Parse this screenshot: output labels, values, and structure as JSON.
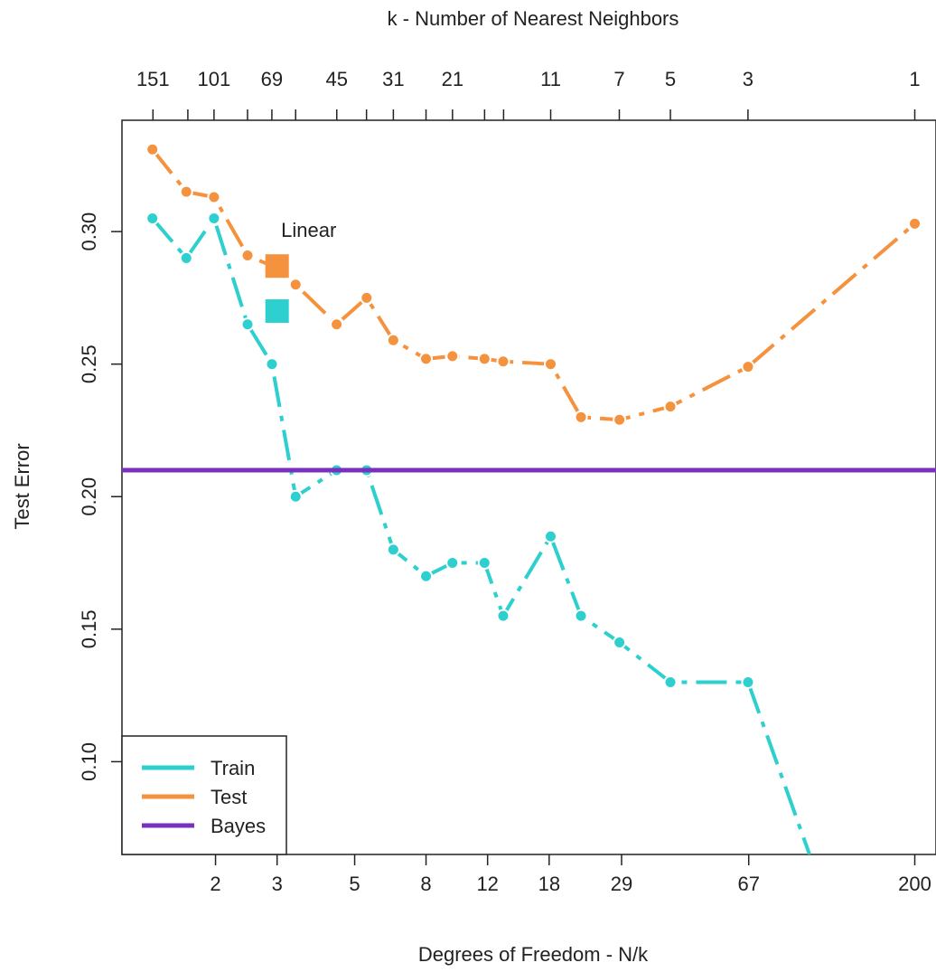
{
  "chart_data": {
    "type": "line",
    "top_axis_title": "k -  Number of Nearest Neighbors",
    "xlabel": "Degrees of Freedom - N/k",
    "ylabel": "Test Error",
    "x_scale": "log",
    "xlim": [
      1.08,
      230
    ],
    "ylim": [
      0.065,
      0.342
    ],
    "grid": false,
    "legend_position": "bottom-left",
    "bottom_ticks": [
      2,
      3,
      5,
      8,
      12,
      18,
      29,
      67,
      200
    ],
    "top_ticks": [
      {
        "k": 151,
        "label": "151"
      },
      {
        "k": 120,
        "label": ""
      },
      {
        "k": 101,
        "label": "101"
      },
      {
        "k": 81,
        "label": ""
      },
      {
        "k": 69,
        "label": "69"
      },
      {
        "k": 59,
        "label": ""
      },
      {
        "k": 45,
        "label": "45"
      },
      {
        "k": 37,
        "label": ""
      },
      {
        "k": 31,
        "label": "31"
      },
      {
        "k": 25,
        "label": ""
      },
      {
        "k": 21,
        "label": "21"
      },
      {
        "k": 17,
        "label": ""
      },
      {
        "k": 15,
        "label": ""
      },
      {
        "k": 11,
        "label": "11"
      },
      {
        "k": 7,
        "label": "7"
      },
      {
        "k": 5,
        "label": "5"
      },
      {
        "k": 3,
        "label": "3"
      },
      {
        "k": 1,
        "label": "1"
      }
    ],
    "y_ticks": [
      {
        "value": 0.1,
        "label": "0.10"
      },
      {
        "value": 0.15,
        "label": "0.15"
      },
      {
        "value": 0.2,
        "label": "0.20"
      },
      {
        "value": 0.25,
        "label": "0.25"
      },
      {
        "value": 0.3,
        "label": "0.30"
      }
    ],
    "k_values": [
      151,
      101,
      69,
      45,
      31,
      21,
      11,
      7,
      5,
      3,
      1
    ],
    "n": 200,
    "series": [
      {
        "name": "Train",
        "color": "#2ecfcf",
        "x": [
          1.32,
          1.65,
          1.98,
          2.47,
          2.9,
          3.39,
          4.44,
          5.41,
          6.45,
          8.0,
          9.52,
          11.76,
          13.3,
          18.18,
          22.2,
          28.6,
          40.0,
          66.7,
          100.0
        ],
        "y": [
          0.305,
          0.29,
          0.305,
          0.265,
          0.25,
          0.2,
          0.21,
          0.21,
          0.18,
          0.17,
          0.175,
          0.175,
          0.155,
          0.185,
          0.155,
          0.145,
          0.13,
          0.13,
          0.065
        ]
      },
      {
        "name": "Test",
        "color": "#f5923e",
        "x": [
          1.32,
          1.65,
          1.98,
          2.47,
          2.9,
          3.39,
          4.44,
          5.41,
          6.45,
          8.0,
          9.52,
          11.76,
          13.3,
          18.18,
          22.2,
          28.6,
          40.0,
          66.7,
          200.0
        ],
        "y": [
          0.331,
          0.315,
          0.313,
          0.291,
          0.287,
          0.28,
          0.265,
          0.275,
          0.259,
          0.252,
          0.253,
          0.252,
          0.251,
          0.25,
          0.23,
          0.229,
          0.234,
          0.249,
          0.303
        ]
      },
      {
        "name": "Bayes",
        "color": "#7b2fbe",
        "y": 0.21
      }
    ],
    "annotations": [
      {
        "text": "Linear",
        "x": 3.08,
        "y": 0.298
      }
    ],
    "linear_markers": [
      {
        "series": "Test",
        "x": 3,
        "y": 0.287,
        "color": "#f5923e"
      },
      {
        "series": "Train",
        "x": 3,
        "y": 0.27,
        "color": "#2ecfcf"
      }
    ]
  }
}
